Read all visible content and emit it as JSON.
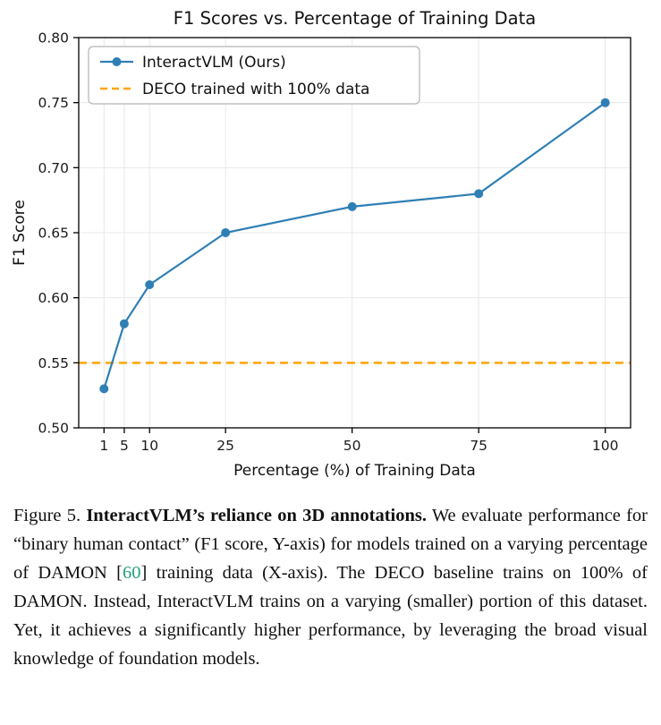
{
  "chart_data": {
    "type": "line",
    "title": "F1 Scores vs. Percentage of Training Data",
    "xlabel": "Percentage (%) of Training Data",
    "ylabel": "F1 Score",
    "x": [
      1,
      5,
      10,
      25,
      50,
      75,
      100
    ],
    "series": [
      {
        "name": "InteractVLM (Ours)",
        "type": "line",
        "marker": "circle",
        "values": [
          0.53,
          0.58,
          0.61,
          0.65,
          0.67,
          0.68,
          0.75
        ],
        "color": "#2f7fb5"
      },
      {
        "name": "DECO trained with 100% data",
        "type": "hline",
        "value": 0.55,
        "color": "#ffa500",
        "dash": true
      }
    ],
    "xlim": [
      -4,
      105
    ],
    "ylim": [
      0.5,
      0.8
    ],
    "xticks": [
      1,
      5,
      10,
      25,
      50,
      75,
      100
    ],
    "yticks": [
      0.5,
      0.55,
      0.6,
      0.65,
      0.7,
      0.75,
      0.8
    ],
    "grid": true,
    "grid_color": "#e8e8e8",
    "axis_color": "#000000",
    "legend_position": "upper left"
  },
  "caption": {
    "segments": [
      {
        "text": "Figure 5. ",
        "bold": false,
        "name": "caption-figure-label"
      },
      {
        "text": "InteractVLM’s reliance on 3D annotations.",
        "bold": true,
        "name": "caption-bold-title"
      },
      {
        "text": " We evaluate performance for “binary human contact” (F1 score, Y-axis) for models trained on a varying percentage of DAMON [",
        "bold": false,
        "name": "caption-text-1"
      },
      {
        "text": "60",
        "bold": false,
        "color": "#22a27c",
        "name": "citation-60"
      },
      {
        "text": "] training data (X-axis). The DECO baseline trains on 100% of DAMON. Instead, InteractVLM trains on a varying (smaller) portion of this dataset. Yet, it achieves a significantly higher performance, by leveraging the broad visual knowledge of foundation models.",
        "bold": false,
        "name": "caption-text-2"
      }
    ]
  }
}
